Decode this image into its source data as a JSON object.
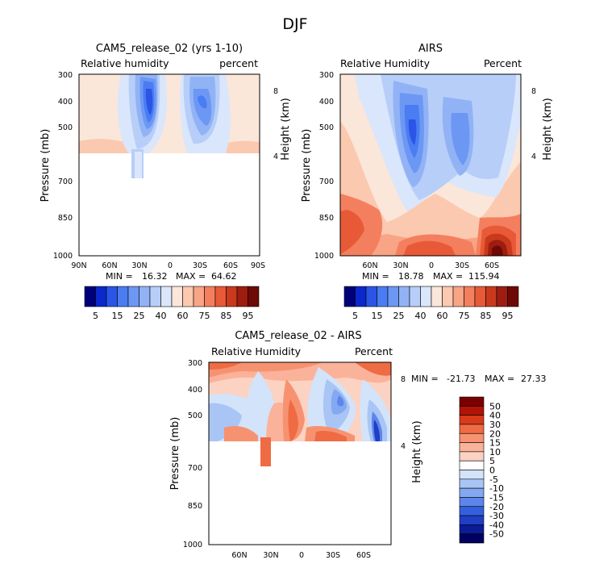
{
  "figure": {
    "season": "DJF"
  },
  "chart_data": [
    {
      "type": "heatmap",
      "id": "model",
      "title": "CAM5_release_02 (yrs 1-10)",
      "left_label": "Relative humidity",
      "right_label": "percent",
      "ylabel": "Pressure (mb)",
      "y2label": "Height (km)",
      "xticks": [
        "90N",
        "60N",
        "30N",
        "0",
        "30S",
        "60S",
        "90S"
      ],
      "yticks": [
        "300",
        "400",
        "500",
        "700",
        "850",
        "1000"
      ],
      "y2ticks": [
        "8",
        "4"
      ],
      "stats": {
        "min_label": "MIN =",
        "min": "16.32",
        "max_label": "MAX =",
        "max": "64.62"
      },
      "colorbar": {
        "labels": [
          "5",
          "15",
          "25",
          "40",
          "60",
          "75",
          "85",
          "95"
        ]
      }
    },
    {
      "type": "heatmap",
      "id": "obs",
      "title": "AIRS",
      "left_label": "Relative Humidity",
      "right_label": "Percent",
      "ylabel": "Pressure (mb)",
      "y2label": "Height (km)",
      "xticks": [
        "60N",
        "30N",
        "0",
        "30S",
        "60S"
      ],
      "yticks": [
        "300",
        "400",
        "500",
        "700",
        "850",
        "1000"
      ],
      "y2ticks": [
        "8",
        "4"
      ],
      "stats": {
        "min_label": "MIN =",
        "min": "18.78",
        "max_label": "MAX =",
        "max": "115.94"
      },
      "colorbar": {
        "labels": [
          "5",
          "15",
          "25",
          "40",
          "60",
          "75",
          "85",
          "95"
        ]
      }
    },
    {
      "type": "heatmap",
      "id": "diff",
      "title": "CAM5_release_02 - AIRS",
      "left_label": "Relative Humidity",
      "right_label": "Percent",
      "ylabel": "Pressure (mb)",
      "y2label": "Height (km)",
      "xticks": [
        "60N",
        "30N",
        "0",
        "30S",
        "60S"
      ],
      "yticks": [
        "300",
        "400",
        "500",
        "700",
        "850",
        "1000"
      ],
      "y2ticks": [
        "8",
        "4"
      ],
      "stats": {
        "min_label": "MIN =",
        "min": "-21.73",
        "max_label": "MAX =",
        "max": "27.33"
      },
      "colorbar": {
        "labels": [
          "50",
          "40",
          "30",
          "20",
          "15",
          "10",
          "5",
          "0",
          "-5",
          "-10",
          "-15",
          "-20",
          "-30",
          "-40",
          "-50"
        ]
      }
    }
  ],
  "colors": {
    "seq": [
      "#00007a",
      "#0a28cc",
      "#2a55e6",
      "#4a7cf2",
      "#6c98f4",
      "#91b3f6",
      "#b7cef8",
      "#dae6fb",
      "#fbe6da",
      "#fbc9b0",
      "#f8a485",
      "#f47f5f",
      "#e85a37",
      "#c93a1d",
      "#9e1d10",
      "#6e0906"
    ],
    "div": [
      "#7a0000",
      "#b21307",
      "#d93b1a",
      "#ef6b44",
      "#f79270",
      "#fab39a",
      "#fcd2c2",
      "#ffffff",
      "#d3e3fa",
      "#a9c5f5",
      "#84a8f1",
      "#5d86ea",
      "#3360df",
      "#1f3fc4",
      "#0c1c99",
      "#010060"
    ]
  }
}
